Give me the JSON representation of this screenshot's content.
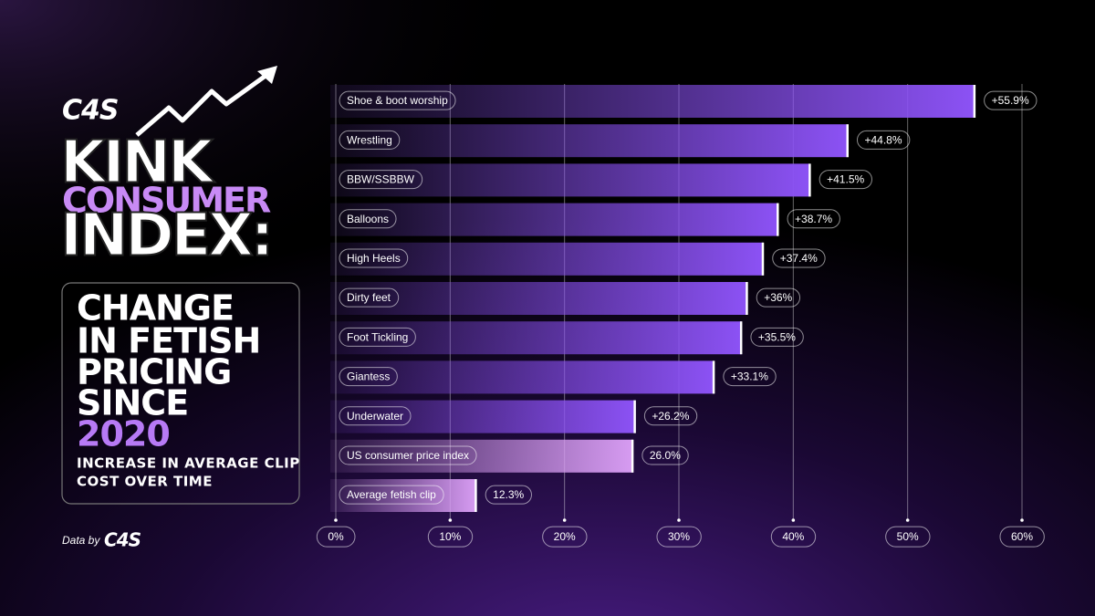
{
  "logo": "C4S",
  "headline": [
    "KINK",
    "CONSUMER",
    "INDEX:"
  ],
  "panel": {
    "lines": [
      "CHANGE",
      "IN FETISH",
      "PRICING",
      "SINCE"
    ],
    "year": "2020",
    "subtitle": [
      "INCREASE IN AVERAGE CLIP",
      "COST OVER TIME"
    ]
  },
  "credit": {
    "label": "Data by",
    "logo": "C4S"
  },
  "chart_data": {
    "type": "hbar",
    "categories": [
      "Shoe & boot worship",
      "Wrestling",
      "BBW/SSBBW",
      "Balloons",
      "High Heels",
      "Dirty feet",
      "Foot Tickling",
      "Giantess",
      "Underwater",
      "US consumer price index",
      "Average fetish clip"
    ],
    "values": [
      55.9,
      44.8,
      41.5,
      38.7,
      37.4,
      36,
      35.5,
      33.1,
      26.2,
      26.0,
      12.3
    ],
    "value_labels": [
      "+55.9%",
      "+44.8%",
      "+41.5%",
      "+38.7%",
      "+37.4%",
      "+36%",
      "+35.5%",
      "+33.1%",
      "+26.2%",
      "26.0%",
      "12.3%"
    ],
    "colors": [
      "#8c52f5",
      "#8c52f5",
      "#8c52f5",
      "#8c52f5",
      "#8c52f5",
      "#8c52f5",
      "#8c52f5",
      "#8c52f5",
      "#8c52f5",
      "#d79cf2",
      "#d79cf2"
    ],
    "xlim": [
      0,
      60
    ],
    "xticks": [
      {
        "value": 0,
        "label": "0%"
      },
      {
        "value": 10,
        "label": "10%"
      },
      {
        "value": 20,
        "label": "20%"
      },
      {
        "value": 30,
        "label": "30%"
      },
      {
        "value": 40,
        "label": "40%"
      },
      {
        "value": 50,
        "label": "50%"
      },
      {
        "value": 60,
        "label": "60%"
      }
    ],
    "grid": true
  }
}
